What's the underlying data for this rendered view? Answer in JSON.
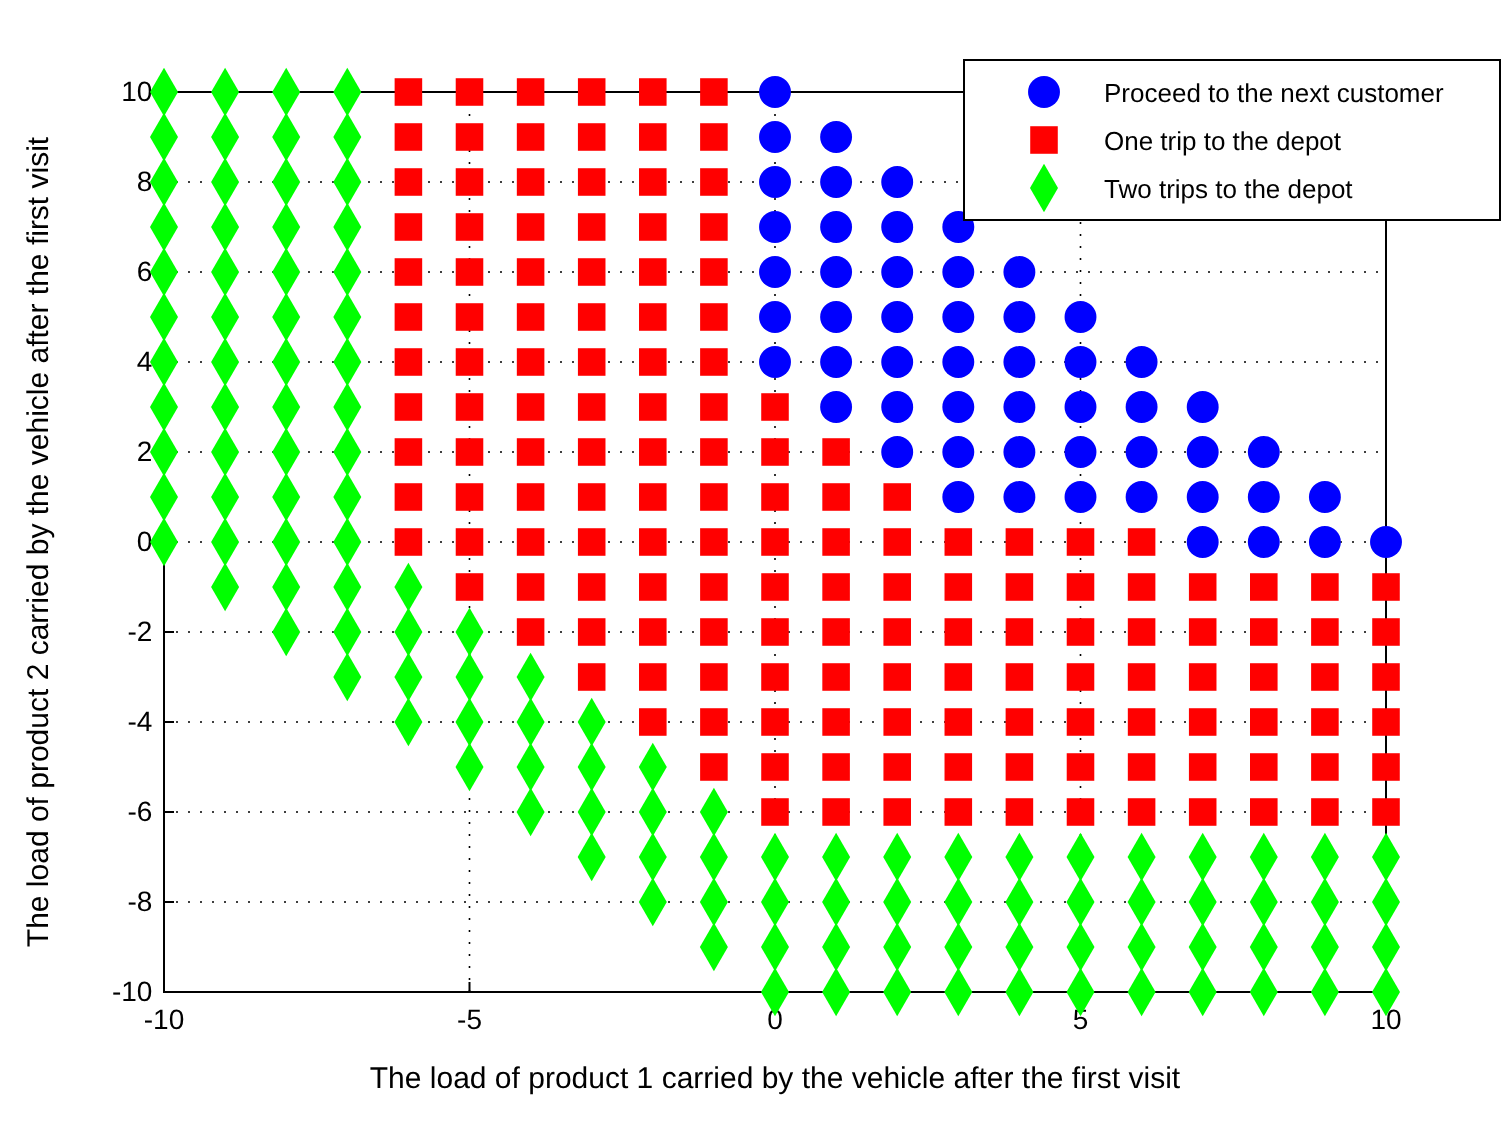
{
  "chart_data": {
    "type": "scatter",
    "xlabel": "The load of product 1 carried by the vehicle after the first visit",
    "ylabel": "The load of product 2 carried by the vehicle after the first visit",
    "xlim": [
      -10,
      10
    ],
    "ylim": [
      -10,
      10
    ],
    "xticks": [
      -10,
      -5,
      0,
      5,
      10
    ],
    "yticks": [
      -10,
      -8,
      -6,
      -4,
      -2,
      0,
      2,
      4,
      6,
      8,
      10
    ],
    "grid": true,
    "legend": "top right",
    "series": [
      {
        "name": "Proceed to the next customer",
        "color": "#0000ff",
        "marker": "circle",
        "x": [
          0,
          0,
          0,
          0,
          0,
          0,
          0,
          1,
          1,
          1,
          1,
          1,
          1,
          1,
          2,
          2,
          2,
          2,
          2,
          2,
          2,
          3,
          3,
          3,
          3,
          3,
          3,
          3,
          4,
          4,
          4,
          4,
          4,
          4,
          5,
          5,
          5,
          5,
          5,
          6,
          6,
          6,
          6,
          7,
          7,
          7,
          7,
          8,
          8,
          8,
          9,
          9,
          10
        ],
        "values": [
          10,
          9,
          8,
          7,
          6,
          5,
          4,
          9,
          8,
          7,
          6,
          5,
          4,
          3,
          8,
          7,
          6,
          5,
          4,
          3,
          2,
          7,
          6,
          5,
          4,
          3,
          2,
          1,
          6,
          5,
          4,
          3,
          2,
          1,
          5,
          4,
          3,
          2,
          1,
          4,
          3,
          2,
          1,
          3,
          2,
          1,
          0,
          2,
          1,
          0,
          1,
          0,
          0
        ]
      },
      {
        "name": "One trip to the depot",
        "color": "#ff0000",
        "marker": "square",
        "x": [
          -6,
          -6,
          -6,
          -6,
          -6,
          -6,
          -6,
          -6,
          -6,
          -6,
          -6,
          -5,
          -5,
          -5,
          -5,
          -5,
          -5,
          -5,
          -5,
          -5,
          -5,
          -5,
          -5,
          -4,
          -4,
          -4,
          -4,
          -4,
          -4,
          -4,
          -4,
          -4,
          -4,
          -4,
          -4,
          -4,
          -3,
          -3,
          -3,
          -3,
          -3,
          -3,
          -3,
          -3,
          -3,
          -3,
          -3,
          -3,
          -3,
          -3,
          -2,
          -2,
          -2,
          -2,
          -2,
          -2,
          -2,
          -2,
          -2,
          -2,
          -2,
          -2,
          -2,
          -2,
          -2,
          -1,
          -1,
          -1,
          -1,
          -1,
          -1,
          -1,
          -1,
          -1,
          -1,
          -1,
          -1,
          -1,
          -1,
          -1,
          -1,
          0,
          0,
          0,
          0,
          0,
          0,
          0,
          0,
          0,
          0,
          1,
          1,
          1,
          1,
          1,
          1,
          1,
          1,
          1,
          2,
          2,
          2,
          2,
          2,
          2,
          2,
          2,
          3,
          3,
          3,
          3,
          3,
          3,
          3,
          4,
          4,
          4,
          4,
          4,
          4,
          4,
          5,
          5,
          5,
          5,
          5,
          5,
          5,
          6,
          6,
          6,
          6,
          6,
          6,
          6,
          7,
          7,
          7,
          7,
          7,
          7,
          8,
          8,
          8,
          8,
          8,
          8,
          9,
          9,
          9,
          9,
          9,
          9,
          10,
          10,
          10,
          10,
          10,
          10
        ],
        "values": [
          10,
          9,
          8,
          7,
          6,
          5,
          4,
          3,
          2,
          1,
          0,
          10,
          9,
          8,
          7,
          6,
          5,
          4,
          3,
          2,
          1,
          0,
          -1,
          10,
          9,
          8,
          7,
          6,
          5,
          4,
          3,
          2,
          1,
          0,
          -1,
          -2,
          10,
          9,
          8,
          7,
          6,
          5,
          4,
          3,
          2,
          1,
          0,
          -1,
          -2,
          -3,
          10,
          9,
          8,
          7,
          6,
          5,
          4,
          3,
          2,
          1,
          0,
          -1,
          -2,
          -3,
          -4,
          10,
          9,
          8,
          7,
          6,
          5,
          4,
          3,
          2,
          1,
          0,
          -1,
          -2,
          -3,
          -4,
          -5,
          3,
          2,
          1,
          0,
          -1,
          -2,
          -3,
          -4,
          -5,
          -6,
          2,
          1,
          0,
          -1,
          -2,
          -3,
          -4,
          -5,
          -6,
          1,
          0,
          -1,
          -2,
          -3,
          -4,
          -5,
          -6,
          0,
          -1,
          -2,
          -3,
          -4,
          -5,
          -6,
          0,
          -1,
          -2,
          -3,
          -4,
          -5,
          -6,
          0,
          -1,
          -2,
          -3,
          -4,
          -5,
          -6,
          0,
          -1,
          -2,
          -3,
          -4,
          -5,
          -6,
          -1,
          -2,
          -3,
          -4,
          -5,
          -6,
          -1,
          -2,
          -3,
          -4,
          -5,
          -6,
          -1,
          -2,
          -3,
          -4,
          -5,
          -6,
          -1,
          -2,
          -3,
          -4,
          -5,
          -6
        ]
      },
      {
        "name": "Two trips to the depot",
        "color": "#00ff00",
        "marker": "diamond",
        "x": [
          -10,
          -10,
          -10,
          -10,
          -10,
          -10,
          -10,
          -10,
          -10,
          -10,
          -10,
          -9,
          -9,
          -9,
          -9,
          -9,
          -9,
          -9,
          -9,
          -9,
          -9,
          -9,
          -9,
          -8,
          -8,
          -8,
          -8,
          -8,
          -8,
          -8,
          -8,
          -8,
          -8,
          -8,
          -8,
          -8,
          -7,
          -7,
          -7,
          -7,
          -7,
          -7,
          -7,
          -7,
          -7,
          -7,
          -7,
          -7,
          -7,
          -7,
          -6,
          -6,
          -6,
          -6,
          -5,
          -5,
          -5,
          -5,
          -4,
          -4,
          -4,
          -4,
          -3,
          -3,
          -3,
          -3,
          -2,
          -2,
          -2,
          -2,
          -1,
          -1,
          -1,
          -1,
          0,
          0,
          0,
          0,
          1,
          1,
          1,
          1,
          2,
          2,
          2,
          2,
          3,
          3,
          3,
          3,
          4,
          4,
          4,
          4,
          5,
          5,
          5,
          5,
          6,
          6,
          6,
          6,
          7,
          7,
          7,
          7,
          8,
          8,
          8,
          8,
          9,
          9,
          9,
          9,
          10,
          10,
          10,
          10
        ],
        "values": [
          10,
          9,
          8,
          7,
          6,
          5,
          4,
          3,
          2,
          1,
          0,
          10,
          9,
          8,
          7,
          6,
          5,
          4,
          3,
          2,
          1,
          0,
          -1,
          10,
          9,
          8,
          7,
          6,
          5,
          4,
          3,
          2,
          1,
          0,
          -1,
          -2,
          10,
          9,
          8,
          7,
          6,
          5,
          4,
          3,
          2,
          1,
          0,
          -1,
          -2,
          -3,
          -1,
          -2,
          -3,
          -4,
          -2,
          -3,
          -4,
          -5,
          -3,
          -4,
          -5,
          -6,
          -4,
          -5,
          -6,
          -7,
          -5,
          -6,
          -7,
          -8,
          -6,
          -7,
          -8,
          -9,
          -7,
          -8,
          -9,
          -10,
          -7,
          -8,
          -9,
          -10,
          -7,
          -8,
          -9,
          -10,
          -7,
          -8,
          -9,
          -10,
          -7,
          -8,
          -9,
          -10,
          -7,
          -8,
          -9,
          -10,
          -7,
          -8,
          -9,
          -10,
          -7,
          -8,
          -9,
          -10,
          -7,
          -8,
          -9,
          -10,
          -7,
          -8,
          -9,
          -10,
          -7,
          -8,
          -9,
          -10
        ]
      }
    ]
  }
}
